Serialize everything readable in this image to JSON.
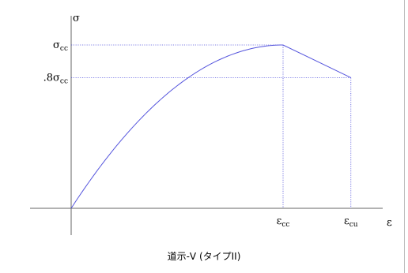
{
  "chart_data": {
    "type": "line",
    "title": "",
    "caption": "道示-V (タイプII)",
    "axes": {
      "x_label": "ε",
      "y_label": "σ"
    },
    "y_ticks": [
      {
        "base": "σ",
        "sub": "cc",
        "prefix": "",
        "value": 1.0
      },
      {
        "base": "σ",
        "sub": "cc",
        "prefix": ".8",
        "value": 0.8
      }
    ],
    "x_ticks": [
      {
        "base": "ε",
        "sub": "cc",
        "value": 1.0
      },
      {
        "base": "ε",
        "sub": "cu",
        "value": 1.32
      }
    ],
    "guide_lines": "dotted",
    "series": [
      {
        "color": "#5555dd",
        "segments": [
          {
            "kind": "parabolic",
            "from": [
              0,
              0
            ],
            "to": [
              1.0,
              1.0
            ],
            "peak": [
              1.0,
              1.0
            ]
          },
          {
            "kind": "linear",
            "from": [
              1.0,
              1.0
            ],
            "to": [
              1.32,
              0.8
            ]
          }
        ]
      }
    ],
    "colors": {
      "curve": "#5555dd",
      "guides": "#5555dd",
      "axes": "#666666"
    }
  }
}
